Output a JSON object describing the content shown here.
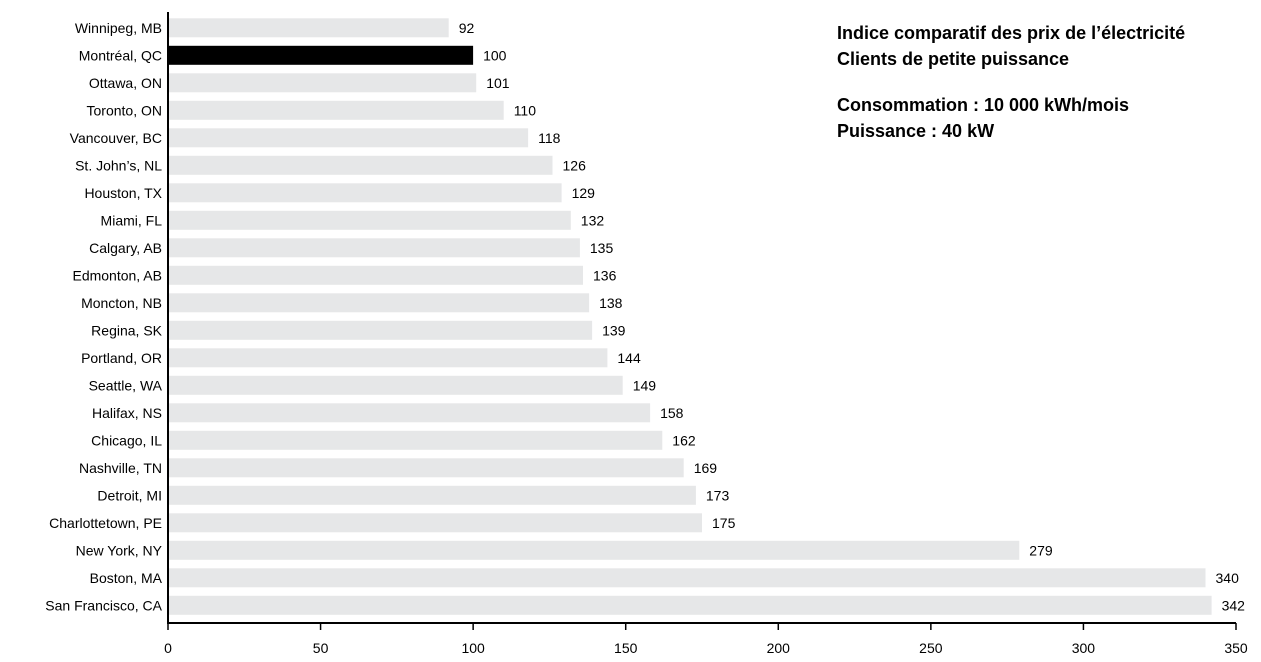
{
  "chart_data": {
    "type": "bar",
    "orientation": "horizontal",
    "title": "Indice comparatif des prix de l’électricité",
    "subtitle": "Clients de petite puissance",
    "notes": [
      "Consommation : 10 000 kWh/mois",
      "Puissance : 40 kW"
    ],
    "categories": [
      "Winnipeg, MB",
      "Montréal, QC",
      "Ottawa, ON",
      "Toronto, ON",
      "Vancouver, BC",
      "St. John’s, NL",
      "Houston, TX",
      "Miami, FL",
      "Calgary, AB",
      "Edmonton, AB",
      "Moncton, NB",
      "Regina, SK",
      "Portland, OR",
      "Seattle, WA",
      "Halifax, NS",
      "Chicago, IL",
      "Nashville, TN",
      "Detroit, MI",
      "Charlottetown, PE",
      "New York, NY",
      "Boston, MA",
      "San Francisco, CA"
    ],
    "values": [
      92,
      100,
      101,
      110,
      118,
      126,
      129,
      132,
      135,
      136,
      138,
      139,
      144,
      149,
      158,
      162,
      169,
      173,
      175,
      279,
      340,
      342
    ],
    "highlight_category": "Montréal, QC",
    "xlim": [
      0,
      350
    ],
    "xticks": [
      0,
      50,
      100,
      150,
      200,
      250,
      300,
      350
    ],
    "xlabel": "",
    "ylabel": "",
    "grid": false,
    "colors": {
      "bar": "#e6e7e8",
      "highlight": "#000000",
      "axis": "#000000"
    }
  }
}
